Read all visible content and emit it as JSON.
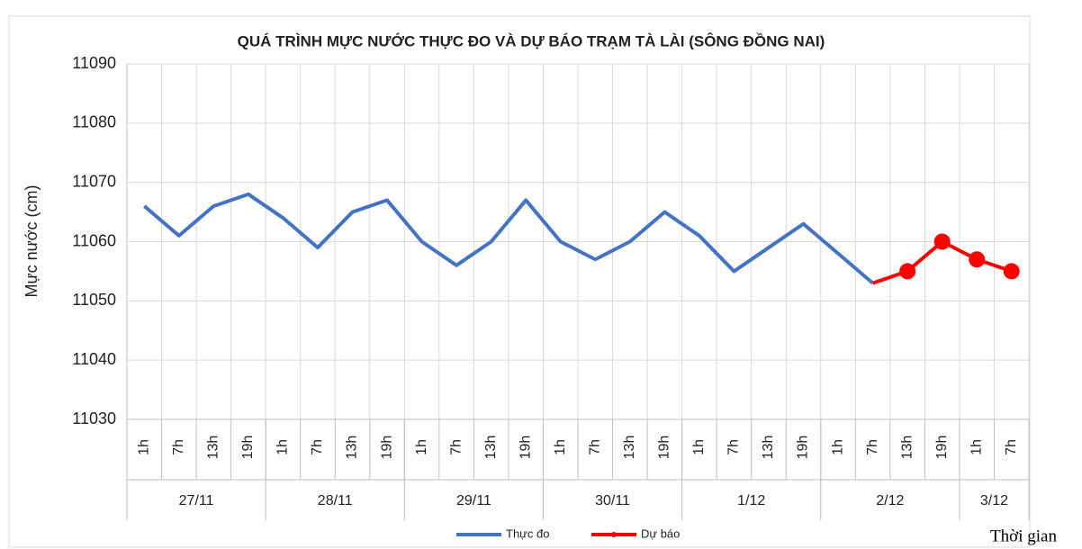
{
  "chart_data": {
    "type": "line",
    "title": "QUÁ TRÌNH MỰC NƯỚC THỰC ĐO VÀ DỰ BÁO TRẠM TÀ LÀI (SÔNG ĐỒNG NAI)",
    "y_label": "Mực nước (cm)",
    "x_label": "Thời gian",
    "categories": [
      "1h",
      "7h",
      "13h",
      "19h",
      "1h",
      "7h",
      "13h",
      "19h",
      "1h",
      "7h",
      "13h",
      "19h",
      "1h",
      "7h",
      "13h",
      "19h",
      "1h",
      "7h",
      "13h",
      "19h",
      "1h",
      "7h",
      "13h",
      "19h",
      "1h",
      "7h"
    ],
    "groups": [
      {
        "label": "27/11",
        "count": 4
      },
      {
        "label": "28/11",
        "count": 4
      },
      {
        "label": "29/11",
        "count": 4
      },
      {
        "label": "30/11",
        "count": 4
      },
      {
        "label": "1/12",
        "count": 4
      },
      {
        "label": "2/12",
        "count": 4
      },
      {
        "label": "3/12",
        "count": 2
      }
    ],
    "series": [
      {
        "name": "Thực đo",
        "color": "#4472c4",
        "values": [
          11066,
          11061,
          11066,
          11068,
          11064,
          11059,
          11065,
          11067,
          11060,
          11056,
          11060,
          11067,
          11060,
          11057,
          11060,
          11065,
          11061,
          11055,
          11059,
          11063,
          11058,
          11053,
          null,
          null,
          null,
          null
        ]
      },
      {
        "name": "Dự báo",
        "color": "#ff0000",
        "values": [
          null,
          null,
          null,
          null,
          null,
          null,
          null,
          null,
          null,
          null,
          null,
          null,
          null,
          null,
          null,
          null,
          null,
          null,
          null,
          null,
          null,
          11053,
          11055,
          11060,
          11057,
          11055
        ]
      }
    ],
    "ylim": [
      11030,
      11090
    ],
    "yticks": [
      11030,
      11040,
      11050,
      11060,
      11070,
      11080,
      11090
    ],
    "grid": true,
    "legend": "bottom"
  }
}
